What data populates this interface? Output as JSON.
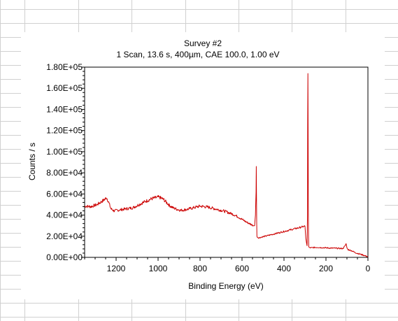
{
  "spreadsheet": {
    "background_grid": true,
    "grid_color": "#d0d0d0"
  },
  "chart_data": {
    "type": "line",
    "title": "Survey #2",
    "subtitle": "1 Scan,  13.6 s,  400µm,  CAE 100.0,  1.00 eV",
    "xlabel": "Binding Energy (eV)",
    "ylabel": "Counts / s",
    "xlim": [
      1350,
      0
    ],
    "ylim": [
      0,
      180000
    ],
    "x_reversed": true,
    "x_ticks": [
      1200,
      1000,
      800,
      600,
      400,
      200,
      0
    ],
    "x_tick_labels": [
      "1200",
      "1000",
      "800",
      "600",
      "400",
      "200",
      "0"
    ],
    "y_ticks": [
      0,
      20000,
      40000,
      60000,
      80000,
      100000,
      120000,
      140000,
      160000,
      180000
    ],
    "y_tick_labels": [
      "0.00E+00",
      "2.00E+04",
      "4.00E+04",
      "6.00E+04",
      "8.00E+04",
      "1.00E+05",
      "1.20E+05",
      "1.40E+05",
      "1.60E+05",
      "1.80E+05"
    ],
    "grid": false,
    "series": [
      {
        "color": "#cc0000",
        "x": [
          1350,
          1320,
          1290,
          1260,
          1245,
          1235,
          1225,
          1210,
          1180,
          1150,
          1120,
          1090,
          1060,
          1030,
          1010,
          1000,
          990,
          975,
          960,
          945,
          930,
          910,
          890,
          860,
          830,
          800,
          780,
          760,
          740,
          720,
          700,
          680,
          660,
          640,
          620,
          600,
          580,
          560,
          545,
          540,
          536,
          533,
          532,
          531,
          530,
          529,
          527,
          524,
          520,
          510,
          500,
          480,
          460,
          440,
          420,
          400,
          380,
          360,
          340,
          320,
          310,
          300,
          296,
          292,
          290,
          288,
          287,
          286,
          285,
          284,
          283,
          282,
          280,
          276,
          270,
          260,
          240,
          220,
          200,
          180,
          160,
          140,
          120,
          110,
          104,
          100,
          96,
          90,
          80,
          70,
          60,
          50,
          40,
          30,
          20,
          10,
          0
        ],
        "y": [
          48500,
          48000,
          50000,
          54000,
          56500,
          52000,
          46000,
          44000,
          45000,
          46000,
          47000,
          50000,
          53000,
          55500,
          56500,
          57000,
          56500,
          55000,
          52000,
          49000,
          47000,
          45500,
          44500,
          45500,
          47000,
          48500,
          48000,
          47500,
          46500,
          45500,
          44500,
          43500,
          42000,
          40500,
          38500,
          36000,
          33500,
          31500,
          30000,
          30000,
          40000,
          62000,
          86000,
          58000,
          32000,
          20000,
          19000,
          18500,
          18500,
          19000,
          19500,
          20500,
          21500,
          22500,
          23500,
          24500,
          25500,
          26500,
          27500,
          28500,
          29000,
          29500,
          18000,
          13000,
          11000,
          40000,
          130000,
          174000,
          120000,
          50000,
          20000,
          10000,
          9500,
          9200,
          9000,
          9300,
          9500,
          9200,
          9000,
          8800,
          8700,
          8500,
          8300,
          10500,
          13000,
          9000,
          7500,
          7000,
          6500,
          5500,
          4500,
          3800,
          3200,
          2600,
          2000,
          1300,
          600
        ]
      }
    ]
  }
}
